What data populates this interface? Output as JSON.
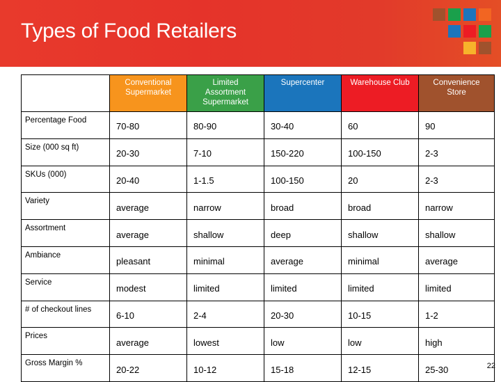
{
  "slide": {
    "title": "Types of Food Retailers",
    "page_number": "22",
    "colors": {
      "title_bar": "#e5332a",
      "accent_orange": "#f26522",
      "accent_green": "#1aa04b",
      "accent_blue": "#1c75bc",
      "accent_red": "#ed1c24",
      "accent_gold": "#f7b32b",
      "accent_brown": "#a0522d"
    }
  },
  "table": {
    "columns": [
      {
        "label": "Conventional Supermarket",
        "color": "#f7941d"
      },
      {
        "label": "Limited Assortment Supermarket",
        "color": "#3aa048"
      },
      {
        "label": "Supercenter",
        "color": "#1b75bc"
      },
      {
        "label": "Warehouse Club",
        "color": "#ed1c24"
      },
      {
        "label": "Convenience Store",
        "color": "#a0522d"
      }
    ],
    "rows": [
      {
        "label": "Percentage Food",
        "values": [
          "70-80",
          "80-90",
          "30-40",
          "60",
          "90"
        ]
      },
      {
        "label": "Size (000 sq ft)",
        "values": [
          "20-30",
          "7-10",
          "150-220",
          "100-150",
          "2-3"
        ]
      },
      {
        "label": "SKUs (000)",
        "values": [
          "20-40",
          "1-1.5",
          "100-150",
          "20",
          "2-3"
        ]
      },
      {
        "label": "Variety",
        "values": [
          "average",
          "narrow",
          "broad",
          "broad",
          "narrow"
        ]
      },
      {
        "label": "Assortment",
        "values": [
          "average",
          "shallow",
          "deep",
          "shallow",
          "shallow"
        ]
      },
      {
        "label": "Ambiance",
        "values": [
          "pleasant",
          "minimal",
          "average",
          "minimal",
          "average"
        ]
      },
      {
        "label": "Service",
        "values": [
          "modest",
          "limited",
          "limited",
          "limited",
          "limited"
        ]
      },
      {
        "label": "# of checkout lines",
        "values": [
          "6-10",
          "2-4",
          "20-30",
          "10-15",
          "1-2"
        ]
      },
      {
        "label": "Prices",
        "values": [
          "average",
          "lowest",
          "low",
          "low",
          "high"
        ]
      },
      {
        "label": "Gross Margin %",
        "values": [
          "20-22",
          "10-12",
          "15-18",
          "12-15",
          "25-30"
        ]
      }
    ]
  }
}
